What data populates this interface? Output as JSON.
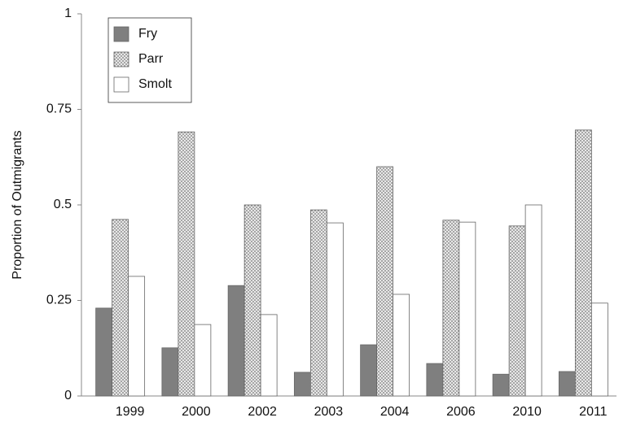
{
  "chart_data": {
    "type": "bar",
    "y_label": "Proportion of Outmigrants",
    "categories": [
      "1999",
      "2000",
      "2002",
      "2003",
      "2004",
      "2006",
      "2010",
      "2011"
    ],
    "series": [
      {
        "name": "Fry",
        "color": "#7f7f7f",
        "values": [
          0.23,
          0.126,
          0.289,
          0.062,
          0.134,
          0.085,
          0.057,
          0.064
        ]
      },
      {
        "name": "Parr",
        "color": "#d0d0d0",
        "pattern": "dots",
        "values": [
          0.462,
          0.691,
          0.5,
          0.487,
          0.6,
          0.46,
          0.445,
          0.696
        ]
      },
      {
        "name": "Smolt",
        "color": "#ffffff",
        "values": [
          0.313,
          0.187,
          0.213,
          0.453,
          0.266,
          0.455,
          0.5,
          0.243
        ]
      }
    ],
    "ylim": [
      0,
      1
    ],
    "yticks": [
      0,
      0.25,
      0.5,
      0.75,
      1
    ],
    "grid": false,
    "legend": "top-left"
  }
}
